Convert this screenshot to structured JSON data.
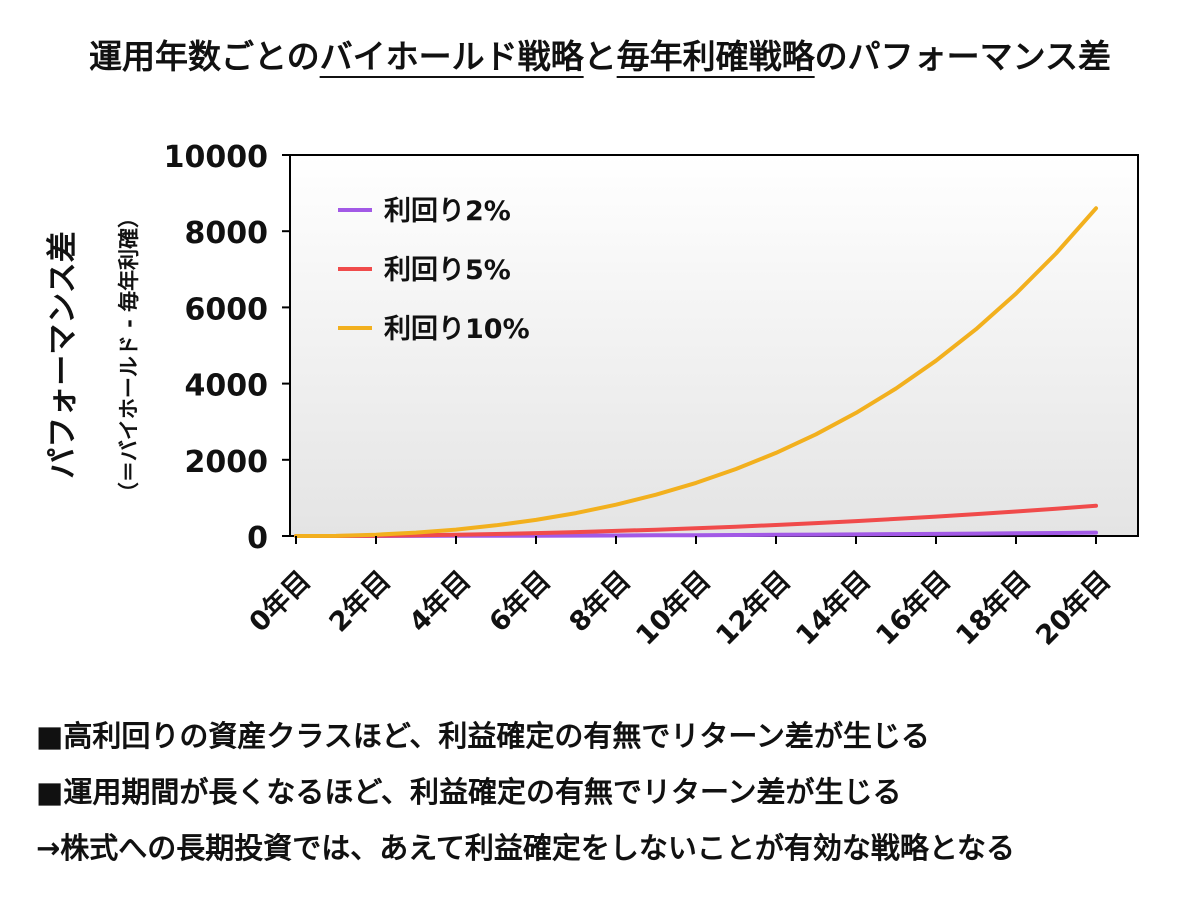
{
  "title": {
    "part1": "運用年数ごとの",
    "part2": "バイホールド戦略",
    "part3": "と",
    "part4": "毎年利確戦略",
    "part5": "のパフォーマンス差"
  },
  "notes": [
    "■高利回りの資産クラスほど、利益確定の有無でリターン差が生じる",
    "■運用期間が長くなるほど、利益確定の有無でリターン差が生じる",
    "→株式への長期投資では、あえて利益確定をしないことが有効な戦略となる"
  ],
  "chart_data": {
    "type": "line",
    "ylabel": "パフォーマンス差",
    "ylabel_sub": "（＝バイホールド - 毎年利確）",
    "ylim": [
      0,
      10000
    ],
    "yticks": [
      "0",
      "2000",
      "4000",
      "6000",
      "8000",
      "10000"
    ],
    "xticks": [
      "0年目",
      "2年目",
      "4年目",
      "6年目",
      "8年目",
      "10年目",
      "12年目",
      "14年目",
      "16年目",
      "18年目",
      "20年目"
    ],
    "x": [
      0,
      1,
      2,
      3,
      4,
      5,
      6,
      7,
      8,
      9,
      10,
      11,
      12,
      13,
      14,
      15,
      16,
      17,
      18,
      19,
      20
    ],
    "legend_position": "top-left",
    "series": [
      {
        "name": "利回り2%",
        "color": "#a259e6",
        "values": [
          0,
          0,
          1,
          2,
          4,
          6,
          8,
          11,
          14,
          18,
          22,
          27,
          32,
          37,
          43,
          49,
          56,
          63,
          71,
          79,
          88
        ]
      },
      {
        "name": "利回り5%",
        "color": "#f04b4b",
        "values": [
          0,
          1,
          8,
          19,
          34,
          53,
          76,
          103,
          133,
          166,
          203,
          245,
          289,
          338,
          391,
          448,
          509,
          574,
          643,
          717,
          796
        ]
      },
      {
        "name": "利回り10%",
        "color": "#f2b01e",
        "values": [
          0,
          3,
          33,
          88,
          169,
          280,
          423,
          602,
          821,
          1083,
          1394,
          1758,
          2181,
          2670,
          3231,
          3872,
          4601,
          5428,
          6362,
          7415,
          8600
        ]
      }
    ]
  }
}
